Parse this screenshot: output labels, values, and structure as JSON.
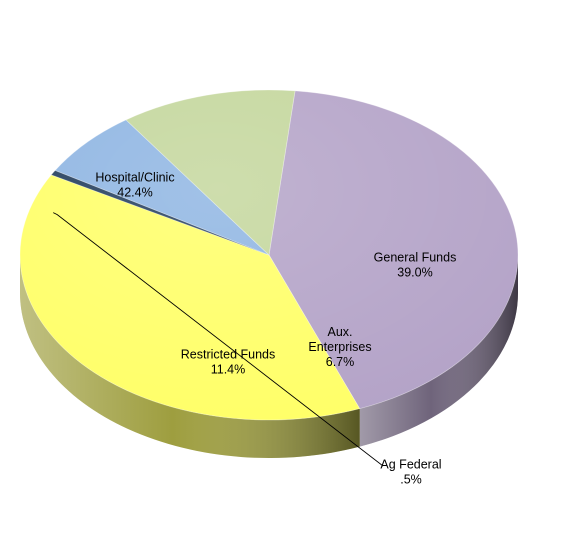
{
  "chart_data": {
    "type": "pie",
    "style": "3d",
    "title": "",
    "slices": [
      {
        "name": "Hospital/Clinic",
        "label_lines": [
          "Hospital/Clinic"
        ],
        "value": 42.4,
        "value_label": "42.4%",
        "color": "#B3A2C7"
      },
      {
        "name": "General Funds",
        "label_lines": [
          "General Funds"
        ],
        "value": 39.0,
        "value_label": "39.0%",
        "color": "#FFFF66"
      },
      {
        "name": "Ag Federal",
        "label_lines": [
          "Ag Federal"
        ],
        "value": 0.5,
        "value_label": ".5%",
        "color": "#1F3A5A"
      },
      {
        "name": "Aux. Enterprises",
        "label_lines": [
          "Aux.",
          "Enterprises"
        ],
        "value": 6.7,
        "value_label": "6.7%",
        "color": "#8DB4E2"
      },
      {
        "name": "Restricted Funds",
        "label_lines": [
          "Restricted Funds"
        ],
        "value": 11.4,
        "value_label": "11.4%",
        "color": "#C3D69B"
      }
    ],
    "legend": "none"
  }
}
